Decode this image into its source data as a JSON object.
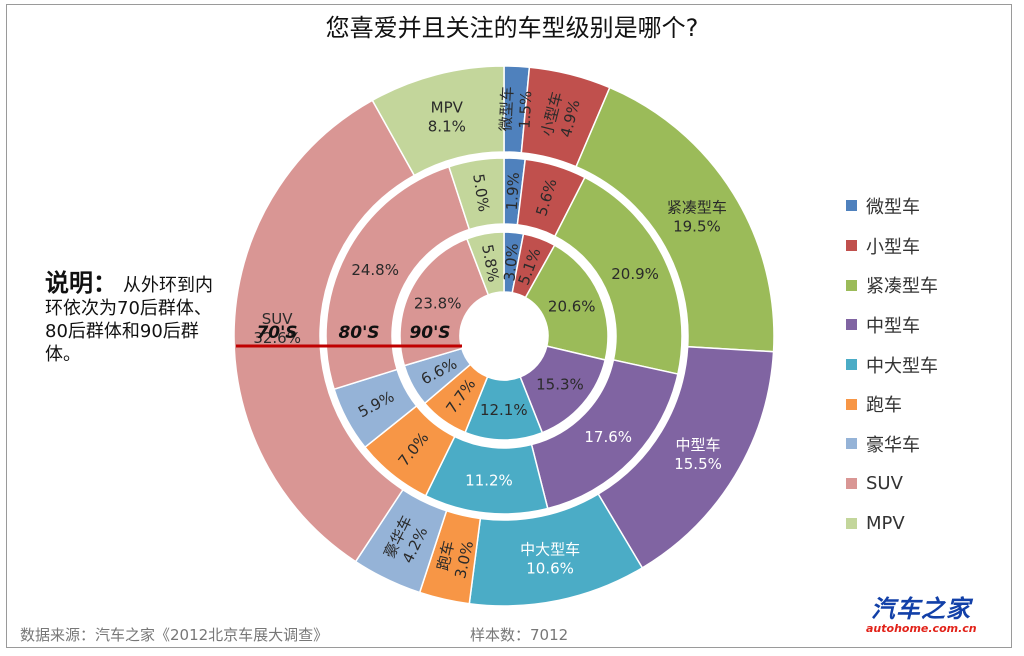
{
  "header": {
    "title": "您喜爱并且关注的车型级别是哪个?"
  },
  "chart_data": {
    "type": "pie",
    "subtype": "multi-ring donut",
    "categories": [
      "微型车",
      "小型车",
      "紧凑型车",
      "中型车",
      "中大型车",
      "跑车",
      "豪华车",
      "SUV",
      "MPV"
    ],
    "colors": [
      "#4f81bd",
      "#c0504d",
      "#9bbb59",
      "#8064a2",
      "#4bacc6",
      "#f79646",
      "#95b3d7",
      "#d99694",
      "#c3d69b"
    ],
    "series": [
      {
        "name": "70'S",
        "values": [
          1.5,
          4.9,
          19.5,
          15.5,
          10.6,
          3.0,
          4.2,
          32.6,
          8.1
        ]
      },
      {
        "name": "80'S",
        "values": [
          1.9,
          5.6,
          20.9,
          17.6,
          11.2,
          7.0,
          5.9,
          24.8,
          5.0
        ]
      },
      {
        "name": "90'S",
        "values": [
          3.0,
          5.1,
          20.6,
          15.3,
          12.1,
          7.7,
          6.6,
          23.8,
          5.8
        ]
      }
    ],
    "legend_position": "right",
    "unit": "%"
  },
  "note": {
    "label": "说明：",
    "text": "从外环到内环依次为70后群体、80后群体和90后群体。"
  },
  "footer": {
    "source": "数据来源：汽车之家《2012北京车展大调查》",
    "sample": "样本数：7012"
  },
  "logo": {
    "main": "汽车之家",
    "sub": "autohome.com.cn"
  }
}
